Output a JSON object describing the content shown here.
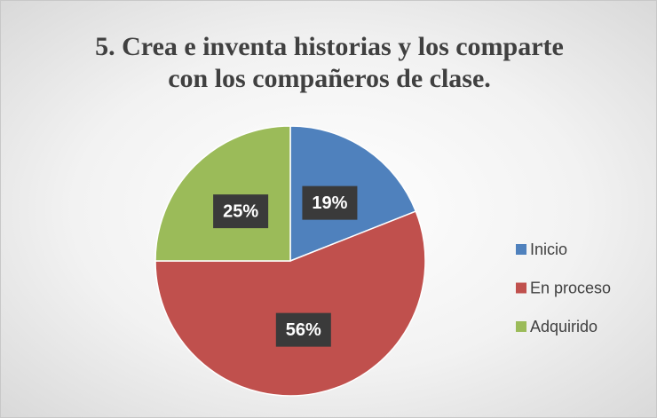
{
  "chart_data": {
    "type": "pie",
    "title": "5. Crea e inventa historias y los comparte con los compañeros de clase.",
    "categories": [
      "Inicio",
      "En proceso",
      "Adquirido"
    ],
    "values": [
      19,
      56,
      25
    ],
    "value_labels": [
      "19%",
      "56%",
      "25%"
    ],
    "colors": [
      "#4f81bd",
      "#c0504d",
      "#9bbb59"
    ],
    "legend": "right"
  }
}
